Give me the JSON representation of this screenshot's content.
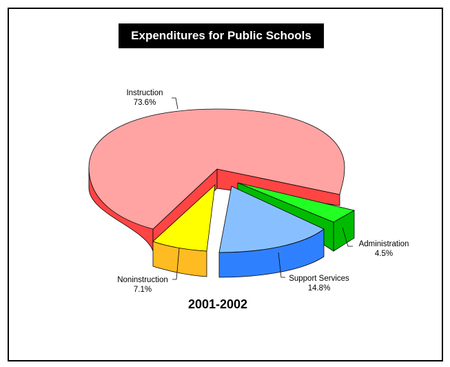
{
  "chart_data": {
    "type": "pie",
    "title": "Expenditures for Public Schools",
    "subtitle": "2001-2002",
    "slices": [
      {
        "label": "Instruction",
        "value": "73.6%",
        "color": "#ffa3a3",
        "side_color": "#ff4444"
      },
      {
        "label": "Administration",
        "value": "4.5%",
        "color": "#22ff22",
        "side_color": "#00bb00"
      },
      {
        "label": "Support Services",
        "value": "14.8%",
        "color": "#88c0ff",
        "side_color": "#2f80ff"
      },
      {
        "label": "Noninstruction",
        "value": "7.1%",
        "color": "#ffff00",
        "side_color": "#ffbb22"
      }
    ]
  }
}
